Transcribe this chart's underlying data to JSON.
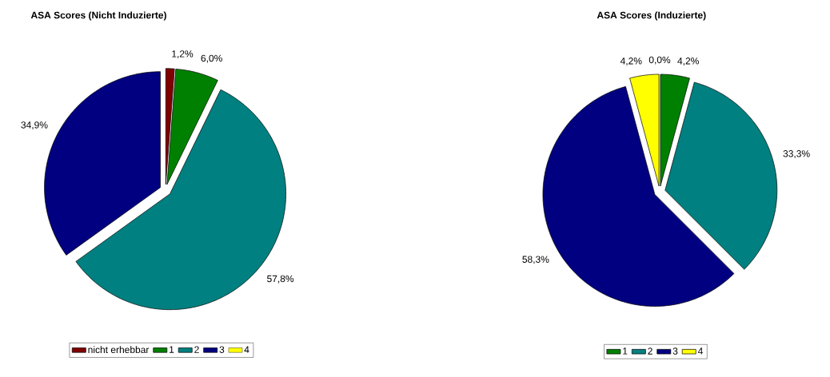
{
  "chart_data": [
    {
      "type": "pie",
      "title": "ASA Scores (Nicht Induzierte)",
      "categories": [
        "nicht erhebbar",
        "1",
        "2",
        "3",
        "4"
      ],
      "values": [
        1.2,
        6.0,
        57.8,
        34.9,
        0
      ],
      "colors": [
        "#800000",
        "#008000",
        "#008080",
        "#000080",
        "#ffff00"
      ],
      "value_labels": [
        "1,2%",
        "6,0%",
        "57,8%",
        "34,9%",
        null
      ],
      "legend": "bottom"
    },
    {
      "type": "pie",
      "title": "ASA Scores (Induzierte)",
      "categories": [
        null,
        "1",
        "2",
        "3",
        "4"
      ],
      "values": [
        0.0,
        4.2,
        33.3,
        58.3,
        4.2
      ],
      "colors": [
        "#800000",
        "#008000",
        "#008080",
        "#000080",
        "#ffff00"
      ],
      "value_labels": [
        "0,0%",
        "4,2%",
        "33,3%",
        "58,3%",
        "4,2%"
      ],
      "legend": "bottom"
    }
  ]
}
